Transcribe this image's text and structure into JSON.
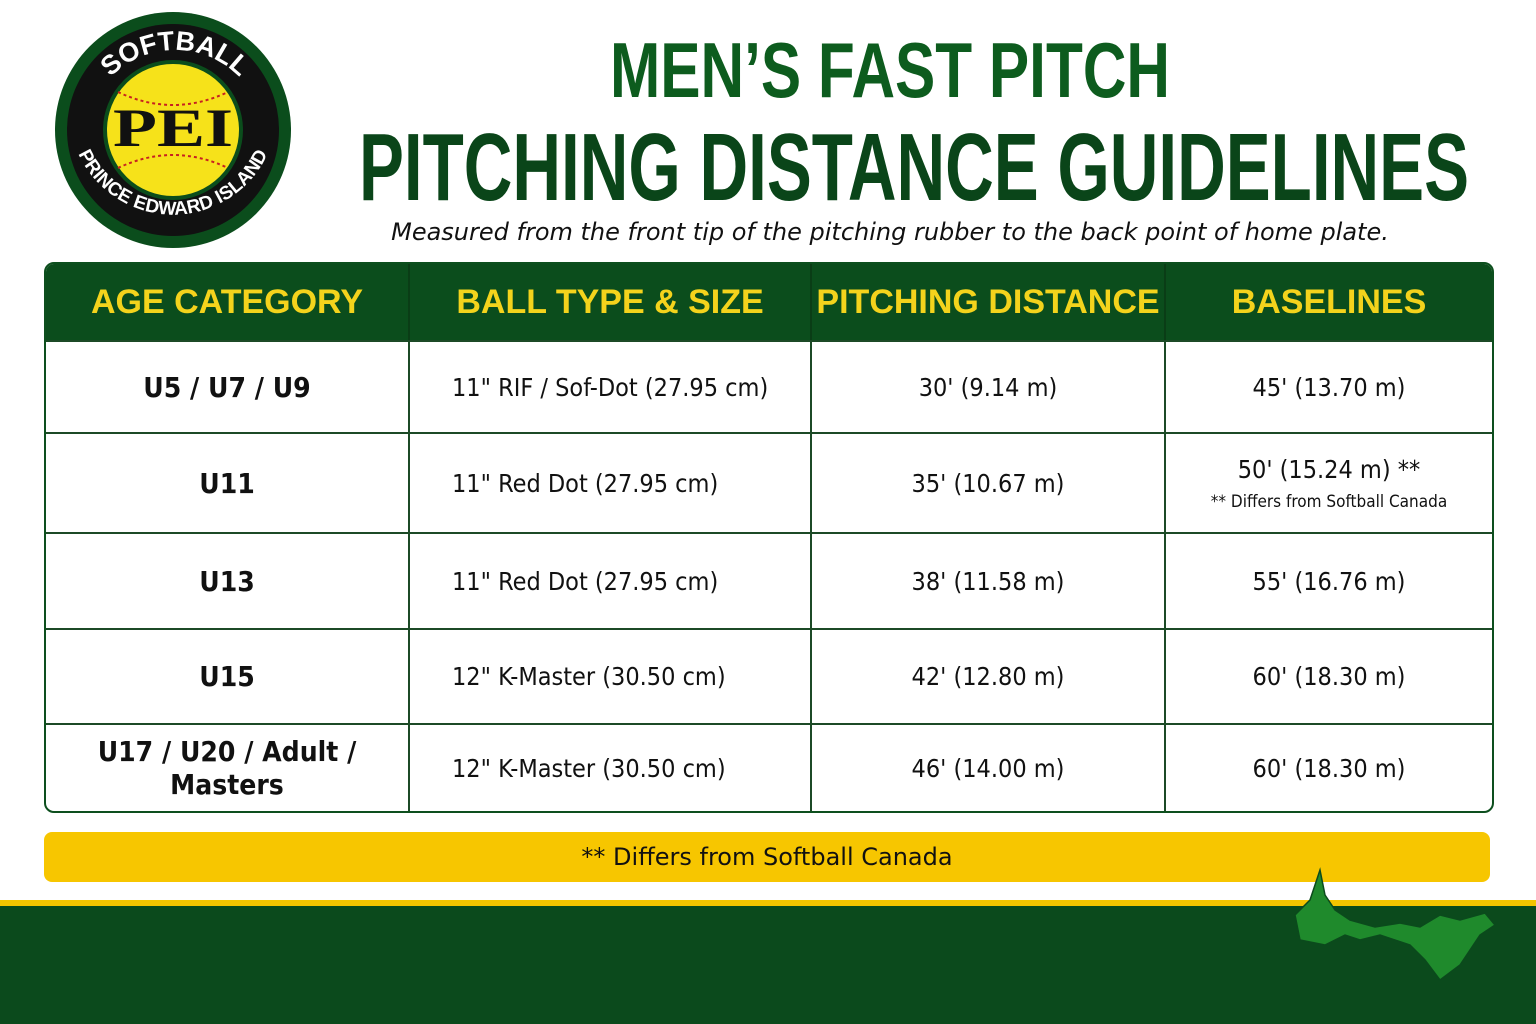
{
  "logo": {
    "top": "SOFTBALL",
    "center": "PEI",
    "bottom": "PRINCE EDWARD ISLAND"
  },
  "header": {
    "title_line1": "MEN’S FAST PITCH",
    "title_line2": "PITCHING DISTANCE GUIDELINES",
    "subtitle": "Measured from the front tip of the pitching rubber to the back point of home plate."
  },
  "table": {
    "headers": [
      "AGE CATEGORY",
      "BALL TYPE & SIZE",
      "PITCHING DISTANCE",
      "BASELINES"
    ],
    "rows": [
      [
        "U5 / U7 / U9",
        "11\" RIF / Sof-Dot (27.95 cm)",
        "30' (9.14 m)",
        "45' (13.70 m)"
      ],
      [
        "U11",
        "11\" Red Dot (27.95 cm)",
        "35' (10.67 m)",
        {
          "text": "50' (15.24 m) **",
          "note": "** Differs from Softball Canada"
        }
      ],
      [
        "U13",
        "11\" Red Dot (27.95 cm)",
        "38' (11.58 m)",
        "55' (16.76 m)"
      ],
      [
        "U15",
        "12\" K-Master (30.50 cm)",
        "42' (12.80 m)",
        "60' (18.30 m)"
      ],
      [
        "U17 / U20 / Adult / Masters",
        "12\" K-Master (30.50 cm)",
        "46' (14.00 m)",
        "60' (18.30 m)"
      ]
    ]
  },
  "footer": {
    "note": "** Differs from Softball Canada"
  }
}
